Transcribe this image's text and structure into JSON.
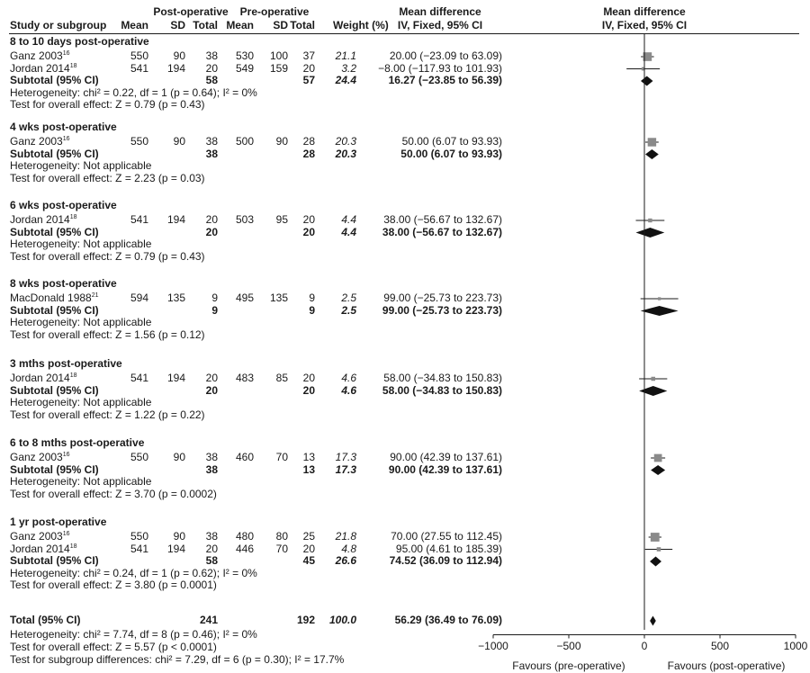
{
  "header": {
    "group_post": "Post-operative",
    "group_pre": "Pre-operative",
    "col_study": "Study or subgroup",
    "col_mean": "Mean",
    "col_sd": "SD",
    "col_total": "Total",
    "col_weight": "Weight (%)",
    "md_title": "Mean difference",
    "md_method": "IV, Fixed, 95% CI",
    "plot_title": "Mean difference",
    "plot_method": "IV, Fixed, 95% CI"
  },
  "labels": {
    "subtotal": "Subtotal (95% CI)",
    "total": "Total (95% CI)"
  },
  "groups": [
    {
      "title": "8 to 10 days post-operative",
      "studies": [
        {
          "name": "Ganz 2003",
          "ref": "16",
          "post_mean": "550",
          "post_sd": "90",
          "post_total": "38",
          "pre_mean": "530",
          "pre_sd": "100",
          "pre_total": "37",
          "weight": "21.1",
          "ci_text": "20.00 (−23.09 to 63.09)",
          "md": 20.0,
          "lo": -23.09,
          "hi": 63.09
        },
        {
          "name": "Jordan 2014",
          "ref": "18",
          "post_mean": "541",
          "post_sd": "194",
          "post_total": "20",
          "pre_mean": "549",
          "pre_sd": "159",
          "pre_total": "20",
          "weight": "3.2",
          "ci_text": "−8.00 (−117.93 to 101.93)",
          "md": -8.0,
          "lo": -117.93,
          "hi": 101.93
        }
      ],
      "subtotal": {
        "post_total": "58",
        "pre_total": "57",
        "weight": "24.4",
        "ci_text": "16.27 (−23.85 to 56.39)",
        "md": 16.27,
        "lo": -23.85,
        "hi": 56.39
      },
      "heterogeneity": "Heterogeneity: chi² = 0.22, df = 1 (p = 0.64); I² = 0%",
      "overall": "Test for overall effect: Z = 0.79 (p = 0.43)"
    },
    {
      "title": "4 wks post-operative",
      "studies": [
        {
          "name": "Ganz 2003",
          "ref": "16",
          "post_mean": "550",
          "post_sd": "90",
          "post_total": "38",
          "pre_mean": "500",
          "pre_sd": "90",
          "pre_total": "28",
          "weight": "20.3",
          "ci_text": "50.00 (6.07 to 93.93)",
          "md": 50.0,
          "lo": 6.07,
          "hi": 93.93
        }
      ],
      "subtotal": {
        "post_total": "38",
        "pre_total": "28",
        "weight": "20.3",
        "ci_text": "50.00 (6.07 to 93.93)",
        "md": 50.0,
        "lo": 6.07,
        "hi": 93.93
      },
      "heterogeneity": "Heterogeneity: Not applicable",
      "overall": "Test for overall effect: Z = 2.23 (p = 0.03)"
    },
    {
      "title": "6 wks post-operative",
      "studies": [
        {
          "name": "Jordan 2014",
          "ref": "18",
          "post_mean": "541",
          "post_sd": "194",
          "post_total": "20",
          "pre_mean": "503",
          "pre_sd": "95",
          "pre_total": "20",
          "weight": "4.4",
          "ci_text": "38.00 (−56.67 to 132.67)",
          "md": 38.0,
          "lo": -56.67,
          "hi": 132.67
        }
      ],
      "subtotal": {
        "post_total": "20",
        "pre_total": "20",
        "weight": "4.4",
        "ci_text": "38.00 (−56.67 to 132.67)",
        "md": 38.0,
        "lo": -56.67,
        "hi": 132.67
      },
      "heterogeneity": "Heterogeneity: Not applicable",
      "overall": "Test for overall effect: Z = 0.79 (p = 0.43)"
    },
    {
      "title": "8 wks post-operative",
      "studies": [
        {
          "name": "MacDonald 1988",
          "ref": "21",
          "post_mean": "594",
          "post_sd": "135",
          "post_total": "9",
          "pre_mean": "495",
          "pre_sd": "135",
          "pre_total": "9",
          "weight": "2.5",
          "ci_text": "99.00 (−25.73 to 223.73)",
          "md": 99.0,
          "lo": -25.73,
          "hi": 223.73
        }
      ],
      "subtotal": {
        "post_total": "9",
        "pre_total": "9",
        "weight": "2.5",
        "ci_text": "99.00 (−25.73 to 223.73)",
        "md": 99.0,
        "lo": -25.73,
        "hi": 223.73
      },
      "heterogeneity": "Heterogeneity: Not applicable",
      "overall": "Test for overall effect: Z = 1.56 (p = 0.12)"
    },
    {
      "title": "3 mths post-operative",
      "studies": [
        {
          "name": "Jordan 2014",
          "ref": "18",
          "post_mean": "541",
          "post_sd": "194",
          "post_total": "20",
          "pre_mean": "483",
          "pre_sd": "85",
          "pre_total": "20",
          "weight": "4.6",
          "ci_text": "58.00 (−34.83 to 150.83)",
          "md": 58.0,
          "lo": -34.83,
          "hi": 150.83
        }
      ],
      "subtotal": {
        "post_total": "20",
        "pre_total": "20",
        "weight": "4.6",
        "ci_text": "58.00 (−34.83 to 150.83)",
        "md": 58.0,
        "lo": -34.83,
        "hi": 150.83
      },
      "heterogeneity": "Heterogeneity: Not applicable",
      "overall": "Test for overall effect: Z = 1.22 (p = 0.22)"
    },
    {
      "title": "6 to 8 mths post-operative",
      "studies": [
        {
          "name": "Ganz 2003",
          "ref": "16",
          "post_mean": "550",
          "post_sd": "90",
          "post_total": "38",
          "pre_mean": "460",
          "pre_sd": "70",
          "pre_total": "13",
          "weight": "17.3",
          "ci_text": "90.00 (42.39 to 137.61)",
          "md": 90.0,
          "lo": 42.39,
          "hi": 137.61
        }
      ],
      "subtotal": {
        "post_total": "38",
        "pre_total": "13",
        "weight": "17.3",
        "ci_text": "90.00 (42.39 to 137.61)",
        "md": 90.0,
        "lo": 42.39,
        "hi": 137.61
      },
      "heterogeneity": "Heterogeneity: Not applicable",
      "overall": "Test for overall effect: Z = 3.70 (p = 0.0002)"
    },
    {
      "title": "1 yr post-operative",
      "studies": [
        {
          "name": "Ganz 2003",
          "ref": "16",
          "post_mean": "550",
          "post_sd": "90",
          "post_total": "38",
          "pre_mean": "480",
          "pre_sd": "80",
          "pre_total": "25",
          "weight": "21.8",
          "ci_text": "70.00 (27.55 to 112.45)",
          "md": 70.0,
          "lo": 27.55,
          "hi": 112.45
        },
        {
          "name": "Jordan 2014",
          "ref": "18",
          "post_mean": "541",
          "post_sd": "194",
          "post_total": "20",
          "pre_mean": "446",
          "pre_sd": "70",
          "pre_total": "20",
          "weight": "4.8",
          "ci_text": "95.00 (4.61 to 185.39)",
          "md": 95.0,
          "lo": 4.61,
          "hi": 185.39
        }
      ],
      "subtotal": {
        "post_total": "58",
        "pre_total": "45",
        "weight": "26.6",
        "ci_text": "74.52 (36.09 to 112.94)",
        "md": 74.52,
        "lo": 36.09,
        "hi": 112.94
      },
      "heterogeneity": "Heterogeneity: chi² = 0.24, df = 1 (p = 0.62); I² = 0%",
      "overall": "Test for overall effect: Z = 3.80 (p = 0.0001)"
    }
  ],
  "total": {
    "post_total": "241",
    "pre_total": "192",
    "weight": "100.0",
    "ci_text": "56.29 (36.49 to 76.09)",
    "md": 56.29,
    "lo": 36.49,
    "hi": 76.09,
    "heterogeneity": "Heterogeneity: chi² = 7.74, df = 8 (p = 0.46); I² = 0%",
    "overall": "Test for overall effect: Z = 5.57 (p < 0.0001)",
    "subgroup": "Test for subgroup differences: chi² = 7.29, df = 6 (p = 0.30); I² = 17.7%"
  },
  "axis": {
    "xlim": [
      -1000,
      1000
    ],
    "ticks": [
      -1000,
      -500,
      0,
      500,
      1000
    ],
    "tick_labels": [
      "−1000",
      "−500",
      "0",
      "500",
      "1000"
    ],
    "favours_left": "Favours (pre-operative)",
    "favours_right": "Favours (post-operative)"
  },
  "colors": {
    "study_marker": "#8a8a8a",
    "summary_diamond": "#111111",
    "lines": "#1a1a1a"
  },
  "chart_data": {
    "type": "forest",
    "xlim": [
      -1000,
      1000
    ],
    "x_ticks": [
      -1000,
      -500,
      0,
      500,
      1000
    ],
    "measure": "Mean difference (IV, Fixed, 95% CI)",
    "series": [
      {
        "name": "8 to 10 days post-operative",
        "studies": [
          {
            "study": "Ganz 2003",
            "md": 20.0,
            "lo": -23.09,
            "hi": 63.09,
            "weight": 21.1
          },
          {
            "study": "Jordan 2014",
            "md": -8.0,
            "lo": -117.93,
            "hi": 101.93,
            "weight": 3.2
          }
        ],
        "subtotal": {
          "md": 16.27,
          "lo": -23.85,
          "hi": 56.39,
          "weight": 24.4
        }
      },
      {
        "name": "4 wks post-operative",
        "studies": [
          {
            "study": "Ganz 2003",
            "md": 50.0,
            "lo": 6.07,
            "hi": 93.93,
            "weight": 20.3
          }
        ],
        "subtotal": {
          "md": 50.0,
          "lo": 6.07,
          "hi": 93.93,
          "weight": 20.3
        }
      },
      {
        "name": "6 wks post-operative",
        "studies": [
          {
            "study": "Jordan 2014",
            "md": 38.0,
            "lo": -56.67,
            "hi": 132.67,
            "weight": 4.4
          }
        ],
        "subtotal": {
          "md": 38.0,
          "lo": -56.67,
          "hi": 132.67,
          "weight": 4.4
        }
      },
      {
        "name": "8 wks post-operative",
        "studies": [
          {
            "study": "MacDonald 1988",
            "md": 99.0,
            "lo": -25.73,
            "hi": 223.73,
            "weight": 2.5
          }
        ],
        "subtotal": {
          "md": 99.0,
          "lo": -25.73,
          "hi": 223.73,
          "weight": 2.5
        }
      },
      {
        "name": "3 mths post-operative",
        "studies": [
          {
            "study": "Jordan 2014",
            "md": 58.0,
            "lo": -34.83,
            "hi": 150.83,
            "weight": 4.6
          }
        ],
        "subtotal": {
          "md": 58.0,
          "lo": -34.83,
          "hi": 150.83,
          "weight": 4.6
        }
      },
      {
        "name": "6 to 8 mths post-operative",
        "studies": [
          {
            "study": "Ganz 2003",
            "md": 90.0,
            "lo": 42.39,
            "hi": 137.61,
            "weight": 17.3
          }
        ],
        "subtotal": {
          "md": 90.0,
          "lo": 42.39,
          "hi": 137.61,
          "weight": 17.3
        }
      },
      {
        "name": "1 yr post-operative",
        "studies": [
          {
            "study": "Ganz 2003",
            "md": 70.0,
            "lo": 27.55,
            "hi": 112.45,
            "weight": 21.8
          },
          {
            "study": "Jordan 2014",
            "md": 95.0,
            "lo": 4.61,
            "hi": 185.39,
            "weight": 4.8
          }
        ],
        "subtotal": {
          "md": 74.52,
          "lo": 36.09,
          "hi": 112.94,
          "weight": 26.6
        }
      }
    ],
    "total": {
      "md": 56.29,
      "lo": 36.49,
      "hi": 76.09,
      "weight": 100.0
    }
  }
}
